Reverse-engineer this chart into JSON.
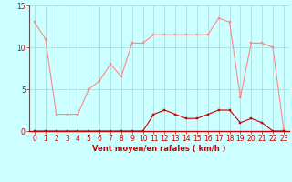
{
  "x": [
    0,
    1,
    2,
    3,
    4,
    5,
    6,
    7,
    8,
    9,
    10,
    11,
    12,
    13,
    14,
    15,
    16,
    17,
    18,
    19,
    20,
    21,
    22,
    23
  ],
  "y_rafales": [
    13,
    11,
    2,
    2,
    2,
    5,
    6,
    8,
    6.5,
    10.5,
    10.5,
    11.5,
    11.5,
    11.5,
    11.5,
    11.5,
    11.5,
    13.5,
    13,
    4,
    10.5,
    10.5,
    10,
    0.2
  ],
  "y_moyen": [
    0,
    0,
    0,
    0,
    0,
    0,
    0,
    0,
    0,
    0,
    0,
    2,
    2.5,
    2,
    1.5,
    1.5,
    2,
    2.5,
    2.5,
    1,
    1.5,
    1,
    0,
    0
  ],
  "xlabel": "Vent moyen/en rafales ( km/h )",
  "ylim": [
    0,
    15
  ],
  "xlim": [
    -0.5,
    23.5
  ],
  "yticks": [
    0,
    5,
    10,
    15
  ],
  "xticks": [
    0,
    1,
    2,
    3,
    4,
    5,
    6,
    7,
    8,
    9,
    10,
    11,
    12,
    13,
    14,
    15,
    16,
    17,
    18,
    19,
    20,
    21,
    22,
    23
  ],
  "color_rafales": "#ff8888",
  "color_moyen": "#cc0000",
  "bg_color": "#ccffff",
  "grid_color": "#aadddd",
  "tick_color": "#cc0000",
  "label_color": "#cc0000",
  "markersize": 2.0,
  "linewidth_rafales": 0.8,
  "linewidth_moyen": 0.8
}
